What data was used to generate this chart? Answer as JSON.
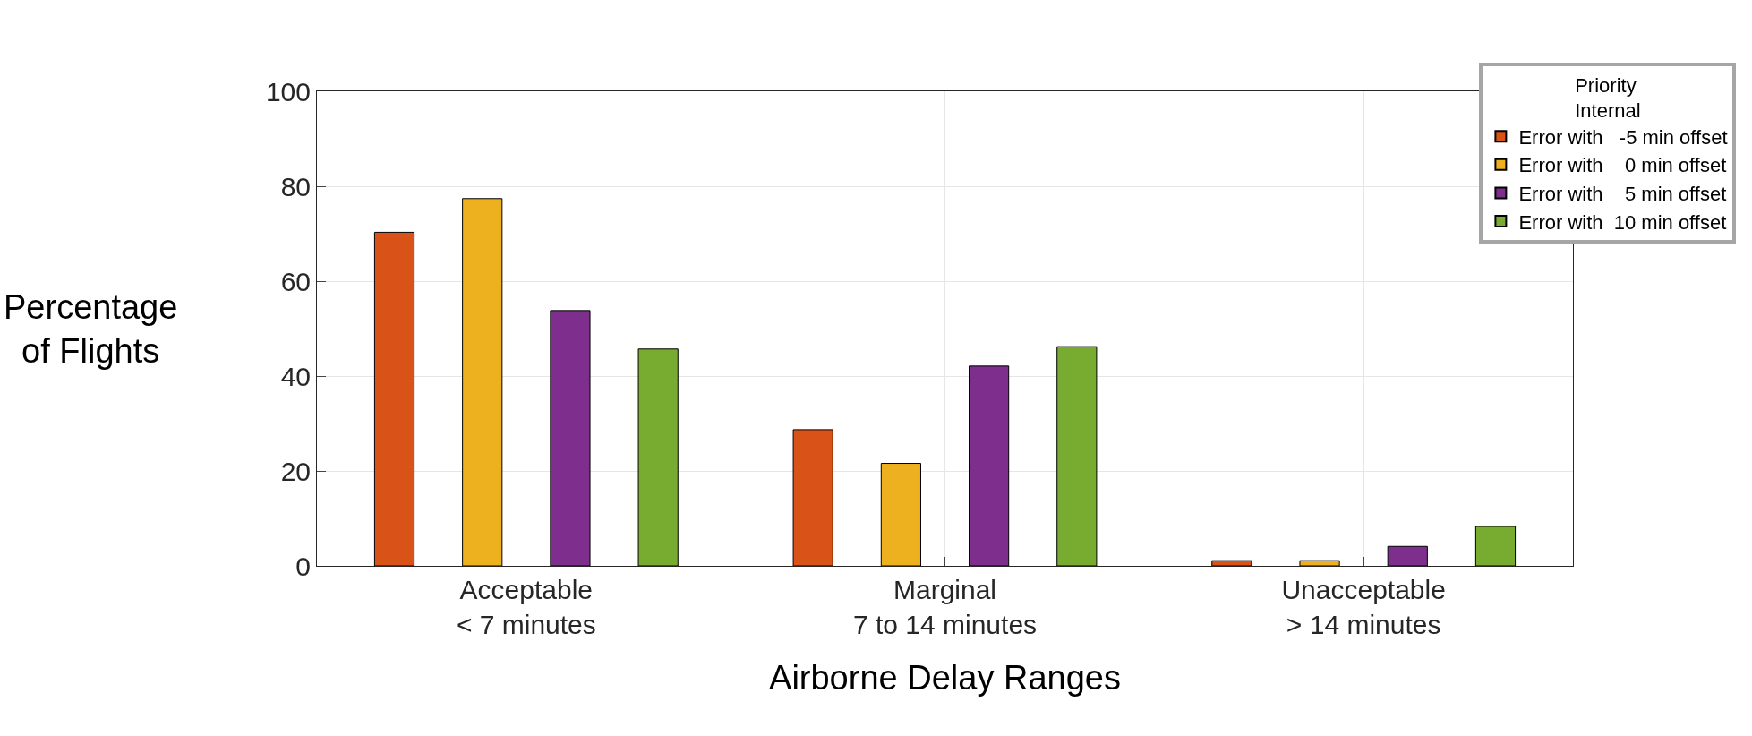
{
  "chart_data": {
    "type": "bar",
    "xlabel": "Airborne Delay Ranges",
    "ylabel": "Percentage\nof Flights",
    "legend_title": "Priority\nInternal",
    "categories": [
      "Acceptable\n< 7 minutes",
      "Marginal\n7 to 14 minutes",
      "Unacceptable\n> 14 minutes"
    ],
    "series": [
      {
        "name": "Error with   -5 min offset",
        "color": "#d95319",
        "values": [
          70.3,
          28.7,
          1.1
        ]
      },
      {
        "name": "Error with    0 min offset",
        "color": "#edb120",
        "values": [
          77.4,
          21.6,
          1.1
        ]
      },
      {
        "name": "Error with    5 min offset",
        "color": "#7e2f8e",
        "values": [
          53.8,
          42.1,
          4.1
        ]
      },
      {
        "name": "Error with  10 min offset",
        "color": "#77ac30",
        "values": [
          45.7,
          46.2,
          8.3
        ]
      }
    ],
    "ylim": [
      0,
      100
    ],
    "yticks": [
      0,
      20,
      40,
      60,
      80,
      100
    ],
    "grid": true,
    "legend": "top right"
  }
}
